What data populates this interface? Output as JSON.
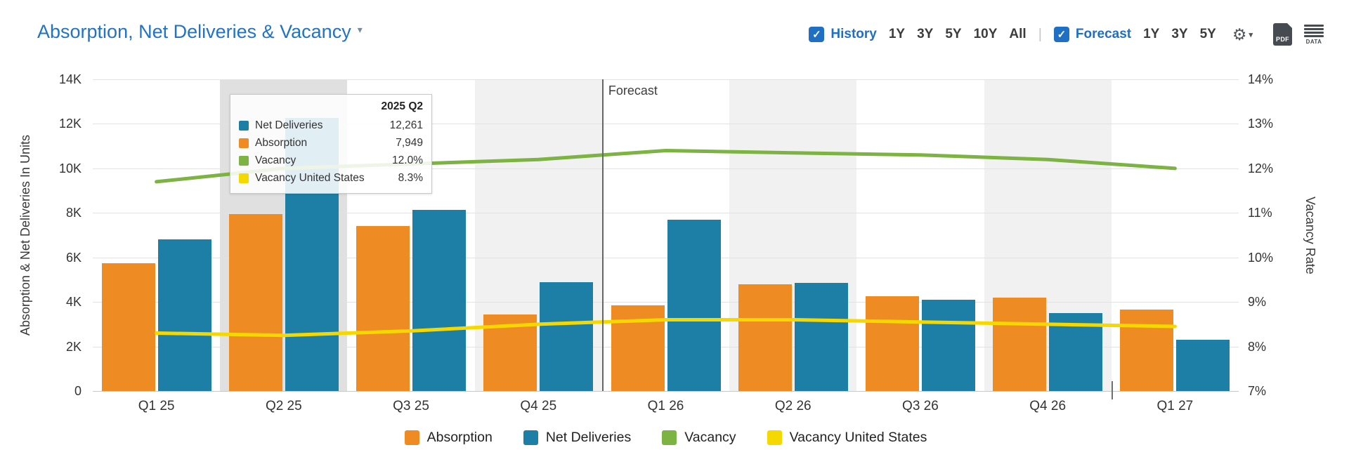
{
  "icons": {
    "gear": "⚙",
    "caret_down": "▾",
    "check": "✓"
  },
  "header": {
    "title": "Absorption, Net Deliveries & Vacancy",
    "separator": "|",
    "history": {
      "label": "History",
      "checked": true,
      "ranges": [
        "1Y",
        "3Y",
        "5Y",
        "10Y",
        "All"
      ]
    },
    "forecast": {
      "label": "Forecast",
      "checked": true,
      "ranges": [
        "1Y",
        "3Y",
        "5Y"
      ]
    },
    "export": {
      "pdf_label": "PDF",
      "data_label": "DATA"
    }
  },
  "chart_data": {
    "type": "bar",
    "title": "Absorption, Net Deliveries & Vacancy",
    "categories": [
      "Q1 25",
      "Q2 25",
      "Q3 25",
      "Q4 25",
      "Q1 26",
      "Q2 26",
      "Q3 26",
      "Q4 26",
      "Q1 27"
    ],
    "series": [
      {
        "name": "Absorption",
        "type": "bar",
        "axis": "left",
        "color": "#ef8b23",
        "values": [
          5750,
          7949,
          7400,
          3450,
          3850,
          4800,
          4250,
          4200,
          3650
        ]
      },
      {
        "name": "Net Deliveries",
        "type": "bar",
        "axis": "left",
        "color": "#1e7fa6",
        "values": [
          6800,
          12261,
          8150,
          4900,
          7700,
          4850,
          4100,
          3500,
          2300
        ]
      },
      {
        "name": "Vacancy",
        "type": "line",
        "axis": "right",
        "color": "#7cb342",
        "values": [
          11.7,
          12.0,
          12.1,
          12.2,
          12.4,
          12.35,
          12.3,
          12.2,
          12.0
        ]
      },
      {
        "name": "Vacancy United States",
        "type": "line",
        "axis": "right",
        "color": "#f5d800",
        "values": [
          8.3,
          8.25,
          8.35,
          8.5,
          8.6,
          8.6,
          8.55,
          8.5,
          8.45
        ]
      }
    ],
    "left_axis": {
      "label": "Absorption & Net Deliveries In Units",
      "min": 0,
      "max": 14000,
      "step": 2000,
      "tick_labels": [
        "0",
        "2K",
        "4K",
        "6K",
        "8K",
        "10K",
        "12K",
        "14K"
      ]
    },
    "right_axis": {
      "label": "Vacancy Rate",
      "min": 7,
      "max": 14,
      "step": 1,
      "tick_labels": [
        "7%",
        "8%",
        "9%",
        "10%",
        "11%",
        "12%",
        "13%",
        "14%"
      ]
    },
    "forecast": {
      "label": "Forecast",
      "start_category": "Q1 26"
    },
    "highlighted_category": "Q2 25",
    "striped_categories": [
      "Q2 25",
      "Q4 25",
      "Q2 26",
      "Q4 26"
    ],
    "grid": true,
    "legend_position": "bottom"
  },
  "tooltip": {
    "title": "2025 Q2",
    "rows": [
      {
        "label": "Net Deliveries",
        "value": "12,261",
        "color": "#1e7fa6"
      },
      {
        "label": "Absorption",
        "value": "7,949",
        "color": "#ef8b23"
      },
      {
        "label": "Vacancy",
        "value": "12.0%",
        "color": "#7cb342"
      },
      {
        "label": "Vacancy United States",
        "value": "8.3%",
        "color": "#f5d800"
      }
    ]
  },
  "legend": {
    "items": [
      {
        "label": "Absorption",
        "color": "#ef8b23"
      },
      {
        "label": "Net Deliveries",
        "color": "#1e7fa6"
      },
      {
        "label": "Vacancy",
        "color": "#7cb342"
      },
      {
        "label": "Vacancy United States",
        "color": "#f5d800"
      }
    ]
  }
}
